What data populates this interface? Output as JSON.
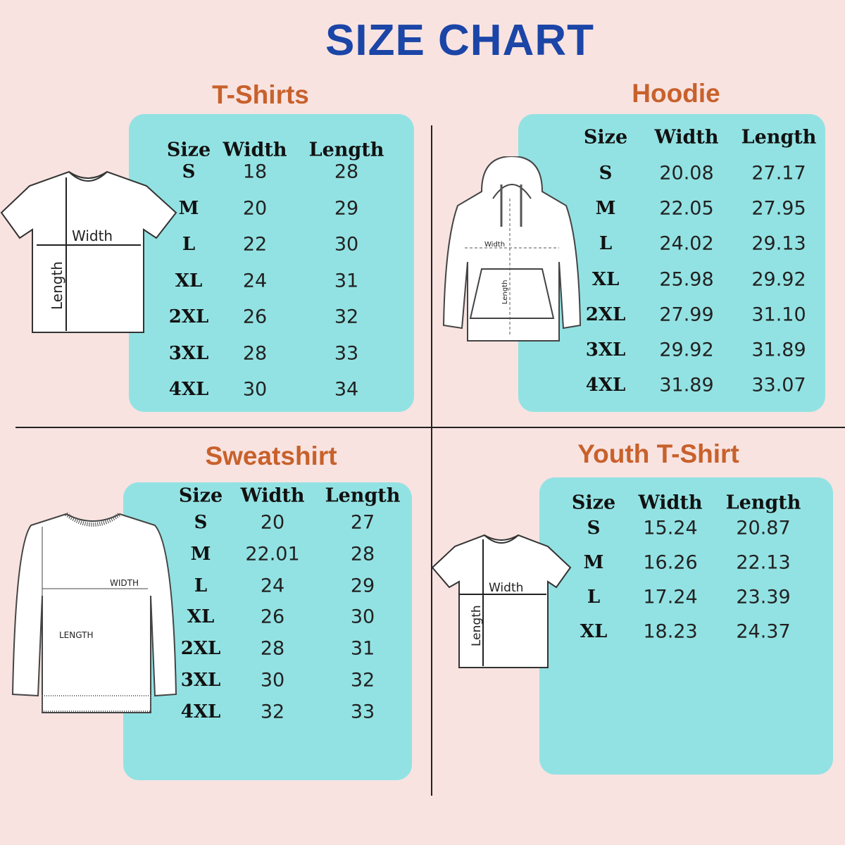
{
  "title": "SIZE CHART",
  "colors": {
    "background": "#f8e3e1",
    "title": "#1b45a6",
    "section_title": "#c8612b",
    "panel": "#93e2e3"
  },
  "sections": [
    {
      "id": "tshirts",
      "title": "T-Shirts",
      "headers": [
        "Size",
        "Width",
        "Length"
      ],
      "rows": [
        [
          "S",
          "18",
          "28"
        ],
        [
          "M",
          "20",
          "29"
        ],
        [
          "L",
          "22",
          "30"
        ],
        [
          "XL",
          "24",
          "31"
        ],
        [
          "2XL",
          "26",
          "32"
        ],
        [
          "3XL",
          "28",
          "33"
        ],
        [
          "4XL",
          "30",
          "34"
        ]
      ],
      "diagram_labels": [
        "Width",
        "Length"
      ]
    },
    {
      "id": "hoodie",
      "title": "Hoodie",
      "headers": [
        "Size",
        "Width",
        "Length"
      ],
      "rows": [
        [
          "S",
          "20.08",
          "27.17"
        ],
        [
          "M",
          "22.05",
          "27.95"
        ],
        [
          "L",
          "24.02",
          "29.13"
        ],
        [
          "XL",
          "25.98",
          "29.92"
        ],
        [
          "2XL",
          "27.99",
          "31.10"
        ],
        [
          "3XL",
          "29.92",
          "31.89"
        ],
        [
          "4XL",
          "31.89",
          "33.07"
        ]
      ],
      "diagram_labels": [
        "Width",
        "Length"
      ]
    },
    {
      "id": "sweatshirt",
      "title": "Sweatshirt",
      "headers": [
        "Size",
        "Width",
        "Length"
      ],
      "rows": [
        [
          "S",
          "20",
          "27"
        ],
        [
          "M",
          "22.01",
          "28"
        ],
        [
          "L",
          "24",
          "29"
        ],
        [
          "XL",
          "26",
          "30"
        ],
        [
          "2XL",
          "28",
          "31"
        ],
        [
          "3XL",
          "30",
          "32"
        ],
        [
          "4XL",
          "32",
          "33"
        ]
      ],
      "diagram_labels": [
        "WIDTH",
        "LENGTH"
      ]
    },
    {
      "id": "youth",
      "title": "Youth T-Shirt",
      "headers": [
        "Size",
        "Width",
        "Length"
      ],
      "rows": [
        [
          "S",
          "15.24",
          "20.87"
        ],
        [
          "M",
          "16.26",
          "22.13"
        ],
        [
          "L",
          "17.24",
          "23.39"
        ],
        [
          "XL",
          "18.23",
          "24.37"
        ]
      ],
      "diagram_labels": [
        "Width",
        "Length"
      ]
    }
  ]
}
